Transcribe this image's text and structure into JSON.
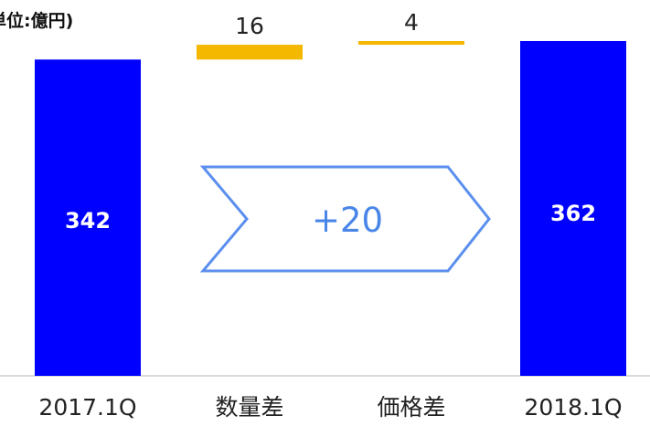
{
  "unit": "単位:億円)",
  "arrow": {
    "label": "+20"
  },
  "colors": {
    "total_bar": "#0000ff",
    "delta_bar": "#f4b800",
    "arrow": "#5b8fef",
    "axis": "#d9d9d9"
  },
  "chart_data": {
    "type": "bar",
    "title": "",
    "ylabel": "",
    "categories": [
      "2017.1Q",
      "数量差",
      "価格差",
      "2018.1Q"
    ],
    "series": [
      {
        "kind": "total",
        "values": [
          342,
          null,
          null,
          362
        ],
        "labels": [
          "342",
          "",
          "",
          "362"
        ]
      },
      {
        "kind": "delta",
        "values": [
          null,
          16,
          4,
          null
        ],
        "labels": [
          "",
          "16",
          "4",
          ""
        ]
      }
    ],
    "baseline_total": 342,
    "change_total": 20
  }
}
